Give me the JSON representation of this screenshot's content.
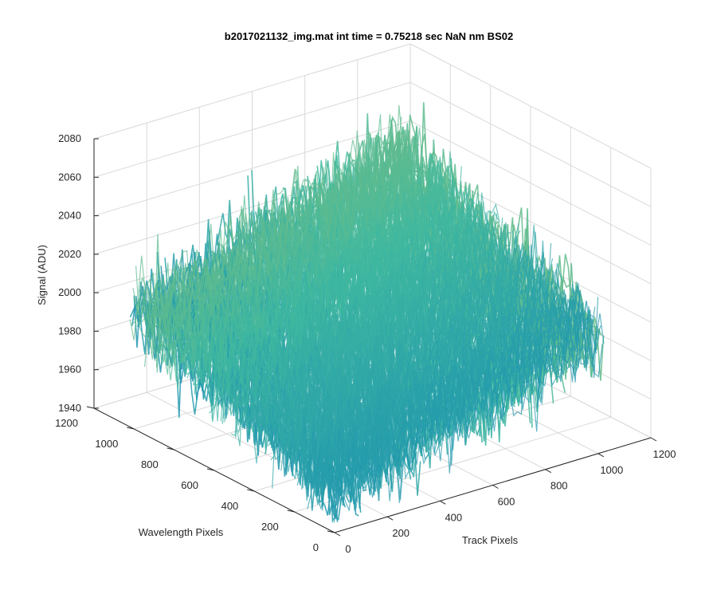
{
  "figure": {
    "title": "b2017021132_img.mat int time = 0.75218 sec  NaN nm BS02"
  },
  "chart_data": {
    "type": "surface",
    "title": "b2017021132_img.mat int time = 0.75218 sec  NaN nm BS02",
    "xlabel": "Track Pixels",
    "ylabel": "Wavelength Pixels",
    "zlabel": "Signal (ADU)",
    "xlim": [
      0,
      1200
    ],
    "ylim": [
      0,
      1200
    ],
    "zlim": [
      1940,
      2080
    ],
    "x_ticks": [
      "0",
      "200",
      "400",
      "600",
      "800",
      "1000",
      "1200"
    ],
    "y_ticks": [
      "0",
      "200",
      "400",
      "600",
      "800",
      "1000",
      "1200"
    ],
    "z_ticks": [
      "1940",
      "1960",
      "1980",
      "2000",
      "2020",
      "2040",
      "2060",
      "2080"
    ],
    "grid": true,
    "colormap": "parula",
    "colors": {
      "low": "#0072bd",
      "mid": "#3fb8a0",
      "high": "#e8c840"
    },
    "surface_extent": {
      "x": [
        0,
        1024
      ],
      "y": [
        0,
        1024
      ]
    },
    "surface_summary": {
      "mean_signal": 2005,
      "peak_signal": 2075,
      "min_signal": 1945,
      "corner_means": [
        {
          "x": 0,
          "y": 0,
          "signal": 1960
        },
        {
          "x": 1024,
          "y": 0,
          "signal": 2000
        },
        {
          "x": 0,
          "y": 1024,
          "signal": 2000
        },
        {
          "x": 1024,
          "y": 1024,
          "signal": 2045
        }
      ]
    }
  }
}
